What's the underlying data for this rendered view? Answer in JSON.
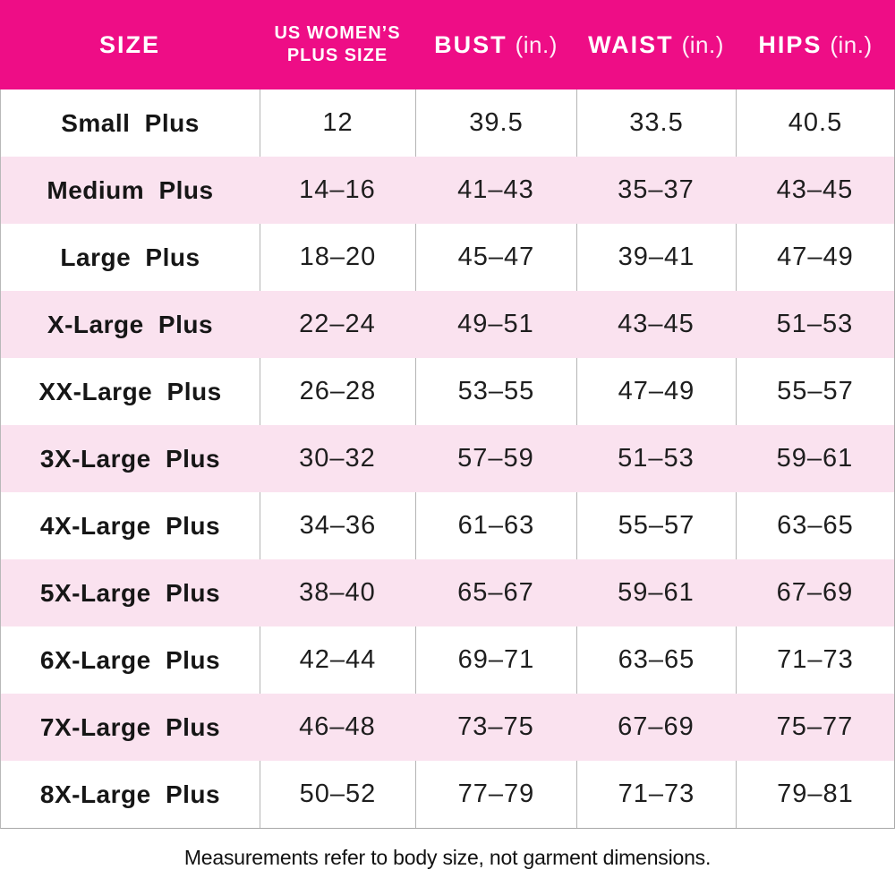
{
  "chart_data": {
    "type": "table",
    "columns": [
      {
        "label": "SIZE",
        "unit": ""
      },
      {
        "label": "US WOMEN'S PLUS SIZE",
        "line1": "US WOMEN’S",
        "line2": "PLUS SIZE",
        "unit": ""
      },
      {
        "label": "BUST",
        "unit": "(in.)"
      },
      {
        "label": "WAIST",
        "unit": "(in.)"
      },
      {
        "label": "HIPS",
        "unit": "(in.)"
      }
    ],
    "rows": [
      [
        "Small Plus",
        "12",
        "39.5",
        "33.5",
        "40.5"
      ],
      [
        "Medium Plus",
        "14–16",
        "41–43",
        "35–37",
        "43–45"
      ],
      [
        "Large Plus",
        "18–20",
        "45–47",
        "39–41",
        "47–49"
      ],
      [
        "X-Large Plus",
        "22–24",
        "49–51",
        "43–45",
        "51–53"
      ],
      [
        "XX-Large Plus",
        "26–28",
        "53–55",
        "47–49",
        "55–57"
      ],
      [
        "3X-Large Plus",
        "30–32",
        "57–59",
        "51–53",
        "59–61"
      ],
      [
        "4X-Large Plus",
        "34–36",
        "61–63",
        "55–57",
        "63–65"
      ],
      [
        "5X-Large Plus",
        "38–40",
        "65–67",
        "59–61",
        "67–69"
      ],
      [
        "6X-Large Plus",
        "42–44",
        "69–71",
        "63–65",
        "71–73"
      ],
      [
        "7X-Large Plus",
        "46–48",
        "73–75",
        "67–69",
        "75–77"
      ],
      [
        "8X-Large Plus",
        "50–52",
        "77–79",
        "71–73",
        "79–81"
      ]
    ],
    "footnote": "Measurements refer to body size, not garment dimensions.",
    "layout_hints": {
      "header_bg": "#EE0D86",
      "alt_row_bg": "#FAE2EF",
      "divider_color": "#B5B5B5",
      "alternating_rows": "white / light-pink starting with white"
    }
  }
}
